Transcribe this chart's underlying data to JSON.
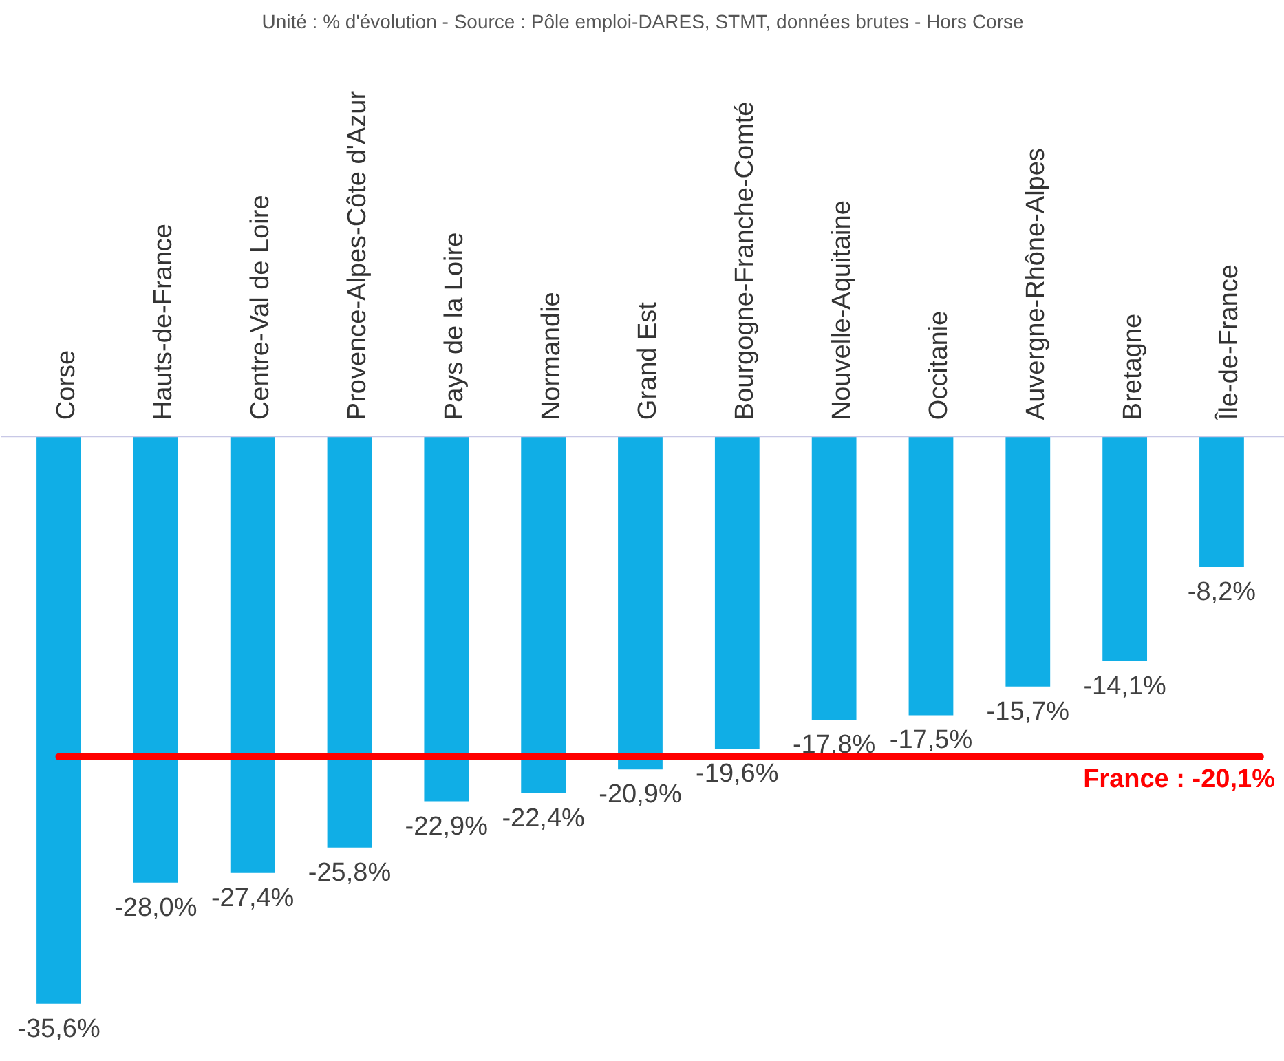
{
  "chart_data": {
    "type": "bar",
    "title": "Unité : % d'évolution - Source : Pôle emploi-DARES, STMT, données brutes - Hors Corse",
    "categories": [
      "Corse",
      "Hauts-de-France",
      "Centre-Val de Loire",
      "Provence-Alpes-Côte d'Azur",
      "Pays de la Loire",
      "Normandie",
      "Grand Est",
      "Bourgogne-Franche-Comté",
      "Nouvelle-Aquitaine",
      "Occitanie",
      "Auvergne-Rhône-Alpes",
      "Bretagne",
      "Île-de-France"
    ],
    "values": [
      -35.6,
      -28.0,
      -27.4,
      -25.8,
      -22.9,
      -22.4,
      -20.9,
      -19.6,
      -17.8,
      -17.5,
      -15.7,
      -14.1,
      -8.2
    ],
    "value_labels": [
      "-35,6%",
      "-28,0%",
      "-27,4%",
      "-25,8%",
      "-22,9%",
      "-22,4%",
      "-20,9%",
      "-19,6%",
      "-17,8%",
      "-17,5%",
      "-15,7%",
      "-14,1%",
      "-8,2%"
    ],
    "color": "#10aee6",
    "ref_lines": [
      {
        "axis": "y",
        "value": -20.1,
        "label": "France : -20,1%",
        "color": "#ff0000"
      }
    ],
    "grid": false
  }
}
